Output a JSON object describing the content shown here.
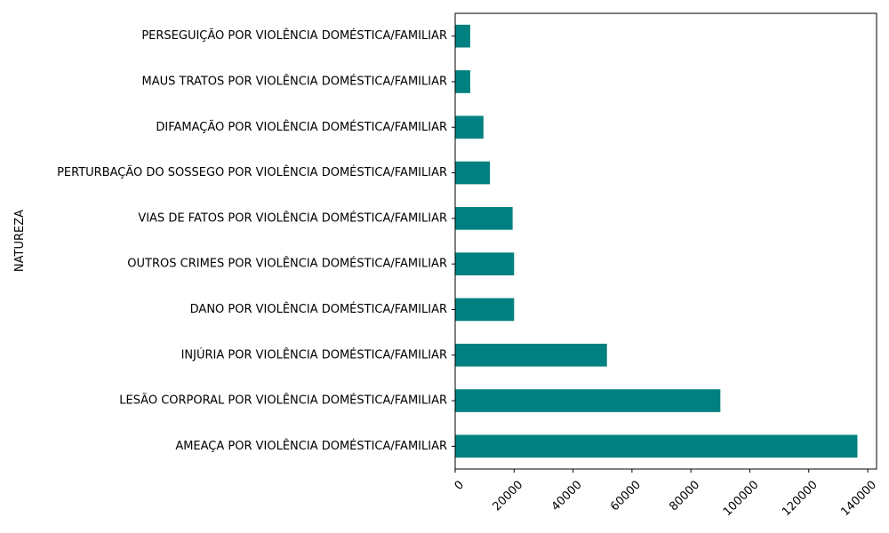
{
  "chart_data": {
    "type": "bar",
    "orientation": "horizontal",
    "ylabel": "NATUREZA",
    "xlabel": "",
    "categories": [
      "AMEAÇA POR VIOLÊNCIA DOMÉSTICA/FAMILIAR",
      "LESÃO CORPORAL POR VIOLÊNCIA DOMÉSTICA/FAMILIAR",
      "INJÚRIA POR VIOLÊNCIA DOMÉSTICA/FAMILIAR",
      "DANO POR VIOLÊNCIA DOMÉSTICA/FAMILIAR",
      "OUTROS CRIMES POR VIOLÊNCIA DOMÉSTICA/FAMILIAR",
      "VIAS DE FATOS POR VIOLÊNCIA DOMÉSTICA/FAMILIAR",
      "PERTURBAÇÃO DO SOSSEGO POR VIOLÊNCIA DOMÉSTICA/FAMILIAR",
      "DIFAMAÇÃO POR VIOLÊNCIA DOMÉSTICA/FAMILIAR",
      "MAUS TRATOS POR VIOLÊNCIA DOMÉSTICA/FAMILIAR",
      "PERSEGUIÇÃO POR VIOLÊNCIA DOMÉSTICA/FAMILIAR"
    ],
    "values": [
      136500,
      90000,
      51500,
      20000,
      20000,
      19500,
      11800,
      9600,
      5100,
      5100
    ],
    "xlim": [
      0,
      143000
    ],
    "xticks": [
      0,
      20000,
      40000,
      60000,
      80000,
      100000,
      120000,
      140000
    ],
    "bar_color": "#008080",
    "grid": false,
    "legend": "none"
  }
}
